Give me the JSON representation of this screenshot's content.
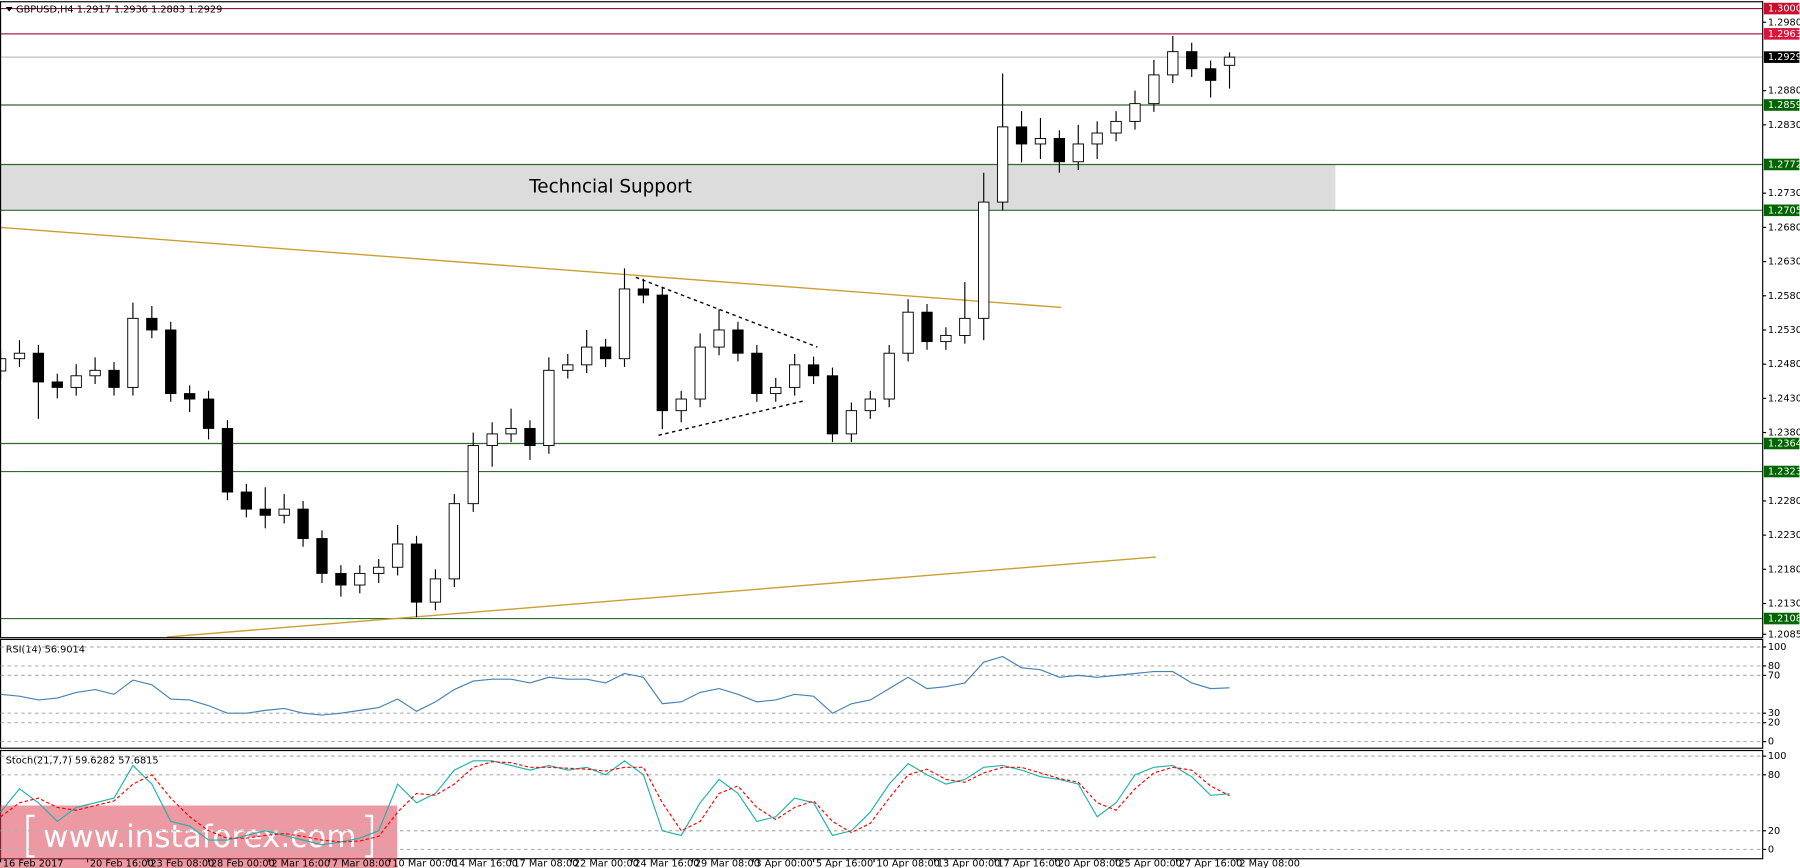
{
  "chart_data": [
    {
      "type": "candlestick",
      "title": "GBPUSD,H4  1.2917 1.2936 1.2883 1.2929",
      "x": [
        0,
        5,
        10,
        15,
        20,
        25,
        30,
        35,
        40,
        45,
        50,
        55,
        60,
        65,
        70,
        75,
        80,
        85,
        90,
        95,
        100,
        105,
        110,
        115,
        120,
        125,
        130,
        135,
        140,
        145,
        150,
        155,
        160,
        165,
        170,
        175,
        180,
        185,
        190,
        195,
        200,
        205,
        210,
        215,
        220,
        225,
        230,
        235,
        240,
        245,
        250,
        255,
        260,
        265,
        270,
        275,
        280,
        285,
        290,
        295,
        300,
        305,
        310,
        315,
        320,
        325
      ],
      "open": [
        1.247,
        1.2488,
        1.2496,
        1.2454,
        1.2446,
        1.2463,
        1.2471,
        1.2446,
        1.2547,
        1.253,
        1.2437,
        1.2429,
        1.2386,
        1.2293,
        1.2268,
        1.2259,
        1.2268,
        1.2225,
        1.2174,
        1.2157,
        1.2174,
        1.2183,
        1.2217,
        1.2132,
        1.2166,
        1.2276,
        1.2361,
        1.2378,
        1.2386,
        1.2361,
        1.2471,
        1.2479,
        1.2505,
        1.2488,
        1.259,
        1.2581,
        1.2412,
        1.2429,
        1.2505,
        1.253,
        1.2496,
        1.2437,
        1.2446,
        1.2479,
        1.2463,
        1.2378,
        1.2412,
        1.2429,
        1.2496,
        1.2556,
        1.2513,
        1.2522,
        1.2547,
        1.2717,
        1.2827,
        1.2802,
        1.281,
        1.2776,
        1.2802,
        1.2818,
        1.2835,
        1.2861,
        1.2903,
        1.2937,
        1.2912,
        1.2917
      ],
      "high": [
        1.25,
        1.2515,
        1.2508,
        1.2466,
        1.248,
        1.249,
        1.2483,
        1.257,
        1.2565,
        1.2542,
        1.2449,
        1.2441,
        1.2398,
        1.2305,
        1.23,
        1.229,
        1.228,
        1.2237,
        1.2186,
        1.2186,
        1.2195,
        1.2245,
        1.2229,
        1.218,
        1.229,
        1.238,
        1.2395,
        1.2415,
        1.2398,
        1.249,
        1.2495,
        1.253,
        1.2517,
        1.262,
        1.2605,
        1.2593,
        1.2441,
        1.2525,
        1.256,
        1.2542,
        1.2508,
        1.246,
        1.2495,
        1.2491,
        1.2475,
        1.2424,
        1.2441,
        1.2508,
        1.2575,
        1.2568,
        1.2534,
        1.26,
        1.276,
        1.2905,
        1.285,
        1.284,
        1.2822,
        1.283,
        1.2835,
        1.285,
        1.288,
        1.2925,
        1.296,
        1.295,
        1.2924,
        1.2936
      ],
      "low": [
        1.2458,
        1.2476,
        1.24,
        1.243,
        1.2434,
        1.2451,
        1.2434,
        1.2434,
        1.2518,
        1.2425,
        1.241,
        1.237,
        1.2281,
        1.2256,
        1.224,
        1.2247,
        1.2213,
        1.216,
        1.214,
        1.2145,
        1.216,
        1.2171,
        1.211,
        1.212,
        1.2154,
        1.2264,
        1.233,
        1.2366,
        1.234,
        1.2349,
        1.2459,
        1.2467,
        1.2476,
        1.2476,
        1.2569,
        1.2385,
        1.2395,
        1.2417,
        1.2493,
        1.2484,
        1.2425,
        1.2425,
        1.2434,
        1.2451,
        1.2366,
        1.2366,
        1.24,
        1.2417,
        1.2484,
        1.2501,
        1.2501,
        1.251,
        1.2515,
        1.2705,
        1.2775,
        1.278,
        1.276,
        1.2764,
        1.278,
        1.2806,
        1.2823,
        1.2849,
        1.2891,
        1.29,
        1.287,
        1.2883
      ],
      "close": [
        1.2488,
        1.2496,
        1.2454,
        1.2446,
        1.2463,
        1.2471,
        1.2446,
        1.2547,
        1.253,
        1.2437,
        1.2429,
        1.2386,
        1.2293,
        1.2268,
        1.2259,
        1.2268,
        1.2225,
        1.2174,
        1.2157,
        1.2174,
        1.2183,
        1.2217,
        1.2132,
        1.2166,
        1.2276,
        1.2361,
        1.2378,
        1.2386,
        1.2361,
        1.2471,
        1.2479,
        1.2505,
        1.2488,
        1.259,
        1.2581,
        1.2412,
        1.2429,
        1.2505,
        1.253,
        1.2496,
        1.2437,
        1.2446,
        1.2479,
        1.2463,
        1.2378,
        1.2412,
        1.2429,
        1.2496,
        1.2556,
        1.2513,
        1.2522,
        1.2547,
        1.2717,
        1.2827,
        1.2802,
        1.281,
        1.2776,
        1.2802,
        1.2818,
        1.2835,
        1.2861,
        1.2903,
        1.2937,
        1.2912,
        1.2895,
        1.2929
      ],
      "up_color": "#ffffff",
      "down_color": "#000000",
      "outline_color": "#000000",
      "xlim": [
        0,
        466
      ],
      "ylim": [
        1.208,
        1.301
      ],
      "yticks": [
        {
          "value": 1.298,
          "label": "1.2980"
        },
        {
          "value": 1.288,
          "label": "1.2880"
        },
        {
          "value": 1.283,
          "label": "1.2830"
        },
        {
          "value": 1.273,
          "label": "1.2730"
        },
        {
          "value": 1.268,
          "label": "1.2680"
        },
        {
          "value": 1.263,
          "label": "1.2630"
        },
        {
          "value": 1.258,
          "label": "1.2580"
        },
        {
          "value": 1.253,
          "label": "1.2530"
        },
        {
          "value": 1.248,
          "label": "1.2480"
        },
        {
          "value": 1.243,
          "label": "1.2430"
        },
        {
          "value": 1.238,
          "label": "1.2380"
        },
        {
          "value": 1.228,
          "label": "1.2280"
        },
        {
          "value": 1.223,
          "label": "1.2230"
        },
        {
          "value": 1.218,
          "label": "1.2180"
        },
        {
          "value": 1.213,
          "label": "1.2130"
        },
        {
          "value": 1.2085,
          "label": "1.2085"
        }
      ],
      "levels": [
        {
          "value": 1.3,
          "label": "1.3000",
          "color": "#c8102e",
          "line_color": "#8b1a3a"
        },
        {
          "value": 1.2963,
          "label": "1.2963",
          "color": "#dc143c",
          "line_color": "#b0204a"
        },
        {
          "value": 1.2929,
          "label": "1.2929",
          "color": "#000000",
          "line_color": "#c0c0c0"
        },
        {
          "value": 1.2859,
          "label": "1.2859",
          "color": "#006400",
          "line_color": "#2e6b2e"
        },
        {
          "value": 1.2772,
          "label": "1.2772",
          "color": "#006400",
          "line_color": "#2e6b2e"
        },
        {
          "value": 1.2705,
          "label": "1.2705",
          "color": "#006400",
          "line_color": "#2e6b2e"
        },
        {
          "value": 1.2364,
          "label": "1.2364",
          "color": "#006400",
          "line_color": "#2e6b2e"
        },
        {
          "value": 1.2323,
          "label": "1.2323",
          "color": "#006400",
          "line_color": "#2e6b2e"
        },
        {
          "value": 1.2108,
          "label": "1.2108",
          "color": "#006400",
          "line_color": "#2e6b2e"
        }
      ],
      "zone": {
        "label": "Techncial Support",
        "x": [
          0,
          353
        ],
        "y": [
          1.2705,
          1.2772
        ],
        "color": "#dcdcdc"
      },
      "trendlines": [
        {
          "x": [
            0,
            280.5
          ],
          "y": [
            1.268,
            1.2563
          ],
          "color": "#c8a032",
          "style": "solid"
        },
        {
          "x": [
            44,
            305.5
          ],
          "y": [
            1.2081,
            1.2198
          ],
          "color": "#c8a032",
          "style": "solid"
        },
        {
          "x": [
            168,
            216
          ],
          "y": [
            1.2607,
            1.2505
          ],
          "color": "#000000",
          "style": "dashed"
        },
        {
          "x": [
            174,
            213
          ],
          "y": [
            1.2376,
            1.2427
          ],
          "color": "#000000",
          "style": "dashed"
        }
      ]
    },
    {
      "type": "line",
      "title": "RSI(14) 56.9014",
      "x": [
        0,
        5,
        10,
        15,
        20,
        25,
        30,
        35,
        40,
        45,
        50,
        55,
        60,
        65,
        70,
        75,
        80,
        85,
        90,
        95,
        100,
        105,
        110,
        115,
        120,
        125,
        130,
        135,
        140,
        145,
        150,
        155,
        160,
        165,
        170,
        175,
        180,
        185,
        190,
        195,
        200,
        205,
        210,
        215,
        220,
        225,
        230,
        235,
        240,
        245,
        250,
        255,
        260,
        265,
        270,
        275,
        280,
        285,
        290,
        295,
        300,
        305,
        310,
        315,
        320,
        325
      ],
      "series": [
        {
          "name": "RSI(14)",
          "color": "#4682b4",
          "style": "solid",
          "values": [
            50,
            48,
            44,
            46,
            52,
            55,
            50,
            65,
            60,
            45,
            44,
            38,
            30,
            30,
            33,
            35,
            30,
            28,
            30,
            33,
            36,
            45,
            32,
            42,
            55,
            64,
            66,
            66,
            62,
            68,
            66,
            66,
            62,
            72,
            68,
            40,
            42,
            52,
            56,
            50,
            42,
            44,
            50,
            48,
            30,
            40,
            44,
            56,
            68,
            56,
            58,
            62,
            84,
            90,
            78,
            76,
            68,
            70,
            68,
            70,
            72,
            74,
            74,
            62,
            56,
            56.9014
          ]
        }
      ],
      "xlim": [
        0,
        466
      ],
      "ylim": [
        -7,
        108
      ],
      "yticks": [
        100,
        80,
        70,
        30,
        20,
        0
      ],
      "grid": "dashed"
    },
    {
      "type": "line",
      "title": "Stoch(21,7,7) 59.6282 57.6815",
      "x": [
        0,
        5,
        10,
        15,
        20,
        25,
        30,
        35,
        40,
        45,
        50,
        55,
        60,
        65,
        70,
        75,
        80,
        85,
        90,
        95,
        100,
        105,
        110,
        115,
        120,
        125,
        130,
        135,
        140,
        145,
        150,
        155,
        160,
        165,
        170,
        175,
        180,
        185,
        190,
        195,
        200,
        205,
        210,
        215,
        220,
        225,
        230,
        235,
        240,
        245,
        250,
        255,
        260,
        265,
        270,
        275,
        280,
        285,
        290,
        295,
        300,
        305,
        310,
        315,
        320,
        325
      ],
      "series": [
        {
          "name": "Main",
          "color": "#20b2aa",
          "style": "solid",
          "values": [
            40,
            65,
            50,
            30,
            45,
            50,
            55,
            90,
            70,
            30,
            25,
            10,
            10,
            15,
            20,
            15,
            10,
            5,
            8,
            12,
            20,
            70,
            50,
            60,
            85,
            95,
            95,
            90,
            85,
            90,
            85,
            88,
            80,
            95,
            80,
            20,
            15,
            50,
            75,
            60,
            30,
            35,
            55,
            50,
            15,
            20,
            40,
            70,
            92,
            80,
            70,
            75,
            88,
            90,
            85,
            78,
            75,
            70,
            35,
            50,
            80,
            88,
            90,
            78,
            58,
            59.6282
          ]
        },
        {
          "name": "Signal",
          "color": "#ff0000",
          "style": "dashed",
          "values": [
            35,
            50,
            55,
            45,
            42,
            47,
            52,
            70,
            80,
            55,
            35,
            20,
            12,
            12,
            15,
            17,
            14,
            10,
            8,
            9,
            14,
            40,
            60,
            58,
            70,
            88,
            94,
            93,
            88,
            88,
            87,
            86,
            84,
            88,
            88,
            50,
            20,
            30,
            60,
            68,
            45,
            32,
            45,
            52,
            30,
            18,
            28,
            55,
            80,
            86,
            75,
            72,
            82,
            88,
            88,
            82,
            76,
            72,
            50,
            42,
            65,
            82,
            88,
            85,
            68,
            57.6815
          ]
        }
      ],
      "xlim": [
        0,
        466
      ],
      "ylim": [
        -10,
        106
      ],
      "yticks": [
        100,
        80,
        20,
        0
      ],
      "grid": "dashed",
      "xticks": [
        {
          "value": 0,
          "label": "16 Feb 2017"
        },
        {
          "value": 23,
          "label": "20 Feb 16:00"
        },
        {
          "value": 39,
          "label": "23 Feb 08:00"
        },
        {
          "value": 55,
          "label": "28 Feb 00:00"
        },
        {
          "value": 71,
          "label": "2 Mar 16:00"
        },
        {
          "value": 87,
          "label": "7 Mar 08:00"
        },
        {
          "value": 103,
          "label": "10 Mar 00:00"
        },
        {
          "value": 119,
          "label": "14 Mar 16:00"
        },
        {
          "value": 135,
          "label": "17 Mar 08:00"
        },
        {
          "value": 151,
          "label": "22 Mar 00:00"
        },
        {
          "value": 167,
          "label": "24 Mar 16:00"
        },
        {
          "value": 183,
          "label": "29 Mar 08:00"
        },
        {
          "value": 199,
          "label": "3 Apr 00:00"
        },
        {
          "value": 215,
          "label": "5 Apr 16:00"
        },
        {
          "value": 231,
          "label": "10 Apr 08:00"
        },
        {
          "value": 247,
          "label": "13 Apr 00:00"
        },
        {
          "value": 263,
          "label": "17 Apr 16:00"
        },
        {
          "value": 279,
          "label": "20 Apr 08:00"
        },
        {
          "value": 295,
          "label": "25 Apr 00:00"
        },
        {
          "value": 311,
          "label": "27 Apr 16:00"
        },
        {
          "value": 327,
          "label": "2 May 08:00"
        }
      ]
    }
  ],
  "watermark": "www.instaforex.com"
}
